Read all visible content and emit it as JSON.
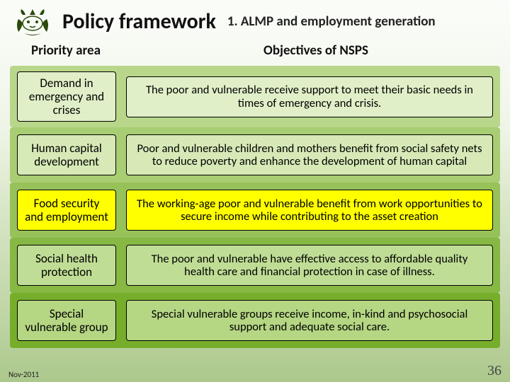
{
  "header": {
    "title": "Policy framework",
    "subtitle": "1. ALMP and employment generation"
  },
  "table": {
    "header_left": "Priority area",
    "header_right": "Objectives of NSPS",
    "rows": [
      {
        "priority": "Demand in emergency and crises",
        "objective": "The poor and vulnerable receive support to meet their basic needs in times of emergency and crisis.",
        "row_bg": "#b8d78a",
        "cell_bg": "#e1efc8",
        "highlight": false
      },
      {
        "priority": "Human capital development",
        "objective": "Poor and vulnerable children and mothers benefit from social safety nets to reduce poverty and enhance the development of human capital",
        "row_bg": "#a8cd72",
        "cell_bg": "#d6e9b6",
        "highlight": false
      },
      {
        "priority": "Food security and employment",
        "objective": "The working-age poor and vulnerable benefit from work opportunities to secure income while contributing to the asset creation",
        "row_bg": "#97c25a",
        "cell_bg": "#ffff00",
        "highlight": true
      },
      {
        "priority": "Social health protection",
        "objective": "The poor and vulnerable have effective access to affordable quality health care and financial protection in case of illness.",
        "row_bg": "#86b843",
        "cell_bg": "#c0dd95",
        "highlight": false
      },
      {
        "priority": "Special vulnerable group",
        "objective": "Special vulnerable groups receive income, in-kind and psychosocial support and adequate social care.",
        "row_bg": "#76ae2c",
        "cell_bg": "#b5d683",
        "highlight": false
      }
    ]
  },
  "footer": {
    "date": "Nov-2011",
    "page": "36"
  },
  "emblem_color": "#2a4a0a"
}
